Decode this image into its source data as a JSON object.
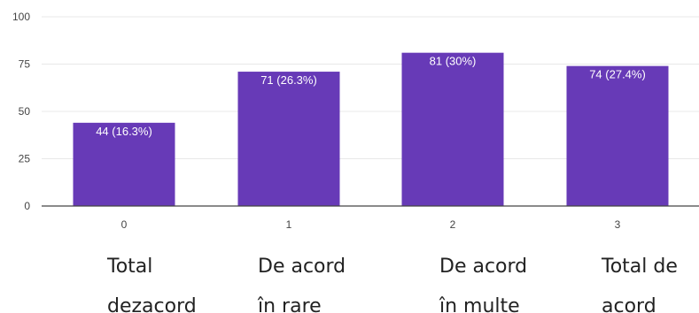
{
  "chart_data": {
    "type": "bar",
    "categories": [
      "0",
      "1",
      "2",
      "3"
    ],
    "values": [
      44,
      71,
      81,
      74
    ],
    "data_labels": [
      "44 (16.3%)",
      "71 (26.3%)",
      "81 (30%)",
      "74 (27.4%)"
    ],
    "extra_category_labels": [
      [
        "Total",
        "dezacord"
      ],
      [
        "De acord",
        "în rare"
      ],
      [
        "De acord",
        "în multe"
      ],
      [
        "Total de",
        "acord"
      ]
    ],
    "ylim": [
      0,
      100
    ],
    "yticks": [
      0,
      25,
      50,
      75,
      100
    ],
    "grid": true,
    "legend": "none",
    "bar_color": "#673AB7",
    "grid_color": "#E8E8E8",
    "axis_color": "#444444"
  }
}
